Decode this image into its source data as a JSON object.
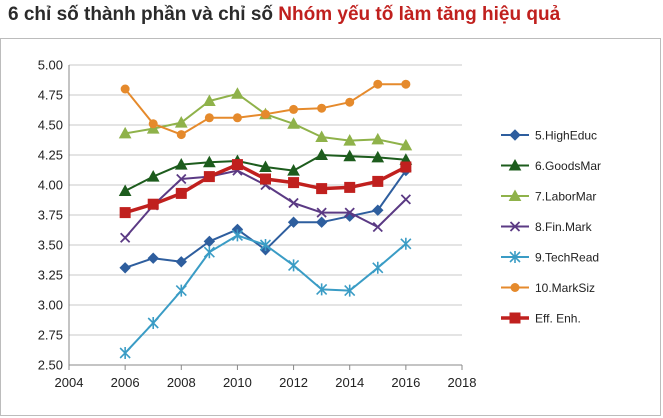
{
  "title": {
    "part1": "6 chỉ số thành phần và chỉ số ",
    "part2": "Nhóm yếu tố làm tăng hiệu quả"
  },
  "chart_data": {
    "type": "line",
    "title": "6 chỉ số thành phần và chỉ số Nhóm yếu tố làm tăng hiệu quả",
    "xlabel": "",
    "ylabel": "",
    "xlim": [
      2004,
      2018
    ],
    "ylim": [
      2.5,
      5.0
    ],
    "x_ticks": [
      "2004",
      "2006",
      "2008",
      "2010",
      "2012",
      "2014",
      "2016",
      "2018"
    ],
    "y_ticks": [
      "2.50",
      "2.75",
      "3.00",
      "3.25",
      "3.50",
      "3.75",
      "4.00",
      "4.25",
      "4.50",
      "4.75",
      "5.00"
    ],
    "grid": "horizontal",
    "legend_position": "right",
    "x": [
      2006,
      2007,
      2008,
      2009,
      2010,
      2011,
      2012,
      2013,
      2014,
      2015,
      2016
    ],
    "series": [
      {
        "name": "5.HighEduc",
        "color": "#2e5e9e",
        "marker": "diamond",
        "width": 2,
        "values": [
          3.31,
          3.39,
          3.36,
          3.53,
          3.63,
          3.46,
          3.69,
          3.69,
          3.74,
          3.79,
          4.12
        ]
      },
      {
        "name": "6.GoodsMar",
        "color": "#1d5c1d",
        "marker": "triangle",
        "width": 2,
        "values": [
          3.95,
          4.07,
          4.17,
          4.19,
          4.2,
          4.15,
          4.12,
          4.25,
          4.24,
          4.23,
          4.21
        ]
      },
      {
        "name": "7.LaborMar",
        "color": "#8fb24a",
        "marker": "triangle",
        "width": 2,
        "values": [
          4.43,
          4.47,
          4.52,
          4.7,
          4.76,
          4.59,
          4.51,
          4.4,
          4.37,
          4.38,
          4.33
        ]
      },
      {
        "name": "8.Fin.Mark",
        "color": "#5b3a84",
        "marker": "x",
        "width": 2,
        "values": [
          3.56,
          3.83,
          4.05,
          4.07,
          4.12,
          4.0,
          3.85,
          3.77,
          3.77,
          3.65,
          3.88
        ]
      },
      {
        "name": "9.TechRead",
        "color": "#3a9cc5",
        "marker": "star",
        "width": 2,
        "values": [
          2.6,
          2.85,
          3.12,
          3.44,
          3.58,
          3.5,
          3.33,
          3.13,
          3.12,
          3.31,
          3.51
        ]
      },
      {
        "name": "10.MarkSiz",
        "color": "#e58a2c",
        "marker": "circle",
        "width": 2,
        "values": [
          4.8,
          4.51,
          4.42,
          4.56,
          4.56,
          4.59,
          4.63,
          4.64,
          4.69,
          4.84,
          4.84
        ]
      },
      {
        "name": "Eff. Enh.",
        "color": "#c0201e",
        "marker": "square",
        "width": 3.5,
        "values": [
          3.77,
          3.84,
          3.93,
          4.07,
          4.17,
          4.05,
          4.02,
          3.97,
          3.98,
          4.03,
          4.15
        ]
      }
    ]
  }
}
